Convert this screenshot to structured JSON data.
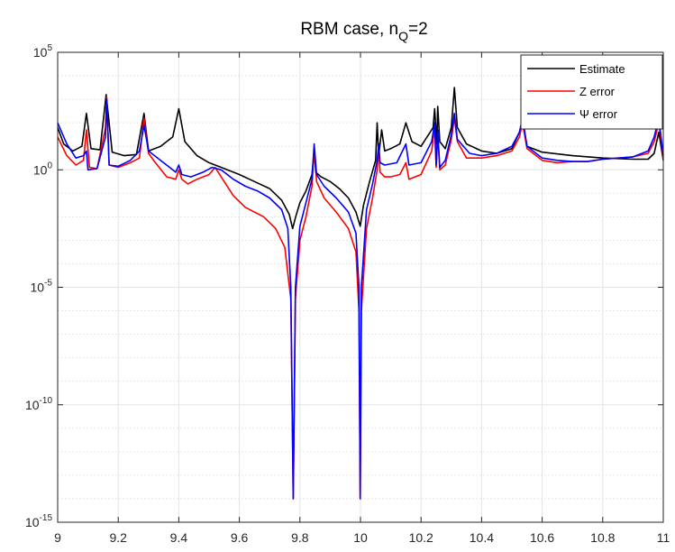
{
  "chart_data": {
    "type": "line",
    "title_main": "RBM case, n",
    "title_sub": "Q",
    "title_tail": "=2",
    "xlabel": "",
    "ylabel": "",
    "x_scale": "linear",
    "y_scale": "log",
    "xlim": [
      9,
      11
    ],
    "ylim_exponents": [
      -15,
      5
    ],
    "grid": true,
    "minor_grid_y": true,
    "legend_position": "top-right",
    "x_ticks": [
      "9",
      "9.2",
      "9.4",
      "9.6",
      "9.8",
      "10",
      "10.2",
      "10.4",
      "10.6",
      "10.8",
      "11"
    ],
    "y_ticks": [
      {
        "base": "10",
        "exp": "5",
        "log": 5
      },
      {
        "base": "10",
        "exp": "0",
        "log": 0
      },
      {
        "base": "10",
        "exp": "-5",
        "log": -5
      },
      {
        "base": "10",
        "exp": "-10",
        "log": -10
      },
      {
        "base": "10",
        "exp": "-15",
        "log": -15
      }
    ],
    "series": [
      {
        "name": "Estimate",
        "color": "#000000",
        "points": [
          [
            9.0,
            1.8
          ],
          [
            9.02,
            1.1
          ],
          [
            9.05,
            0.8
          ],
          [
            9.08,
            1.0
          ],
          [
            9.095,
            2.4
          ],
          [
            9.11,
            0.9
          ],
          [
            9.14,
            0.85
          ],
          [
            9.16,
            3.2
          ],
          [
            9.18,
            0.75
          ],
          [
            9.22,
            0.6
          ],
          [
            9.26,
            0.65
          ],
          [
            9.285,
            2.4
          ],
          [
            9.3,
            0.8
          ],
          [
            9.34,
            1.0
          ],
          [
            9.38,
            1.4
          ],
          [
            9.4,
            2.6
          ],
          [
            9.42,
            1.2
          ],
          [
            9.46,
            0.6
          ],
          [
            9.5,
            0.3
          ],
          [
            9.55,
            0.05
          ],
          [
            9.6,
            -0.2
          ],
          [
            9.65,
            -0.5
          ],
          [
            9.7,
            -0.8
          ],
          [
            9.74,
            -1.3
          ],
          [
            9.765,
            -1.9
          ],
          [
            9.776,
            -2.5
          ],
          [
            9.786,
            -2.0
          ],
          [
            9.8,
            -1.4
          ],
          [
            9.82,
            -0.9
          ],
          [
            9.84,
            -0.2
          ],
          [
            9.847,
            0.8
          ],
          [
            9.852,
            -0.1
          ],
          [
            9.87,
            -0.3
          ],
          [
            9.9,
            -0.5
          ],
          [
            9.93,
            -0.8
          ],
          [
            9.96,
            -1.2
          ],
          [
            9.985,
            -1.8
          ],
          [
            9.999,
            -2.4
          ],
          [
            10.01,
            -1.5
          ],
          [
            10.03,
            -0.5
          ],
          [
            10.05,
            0.4
          ],
          [
            10.055,
            2.0
          ],
          [
            10.06,
            0.6
          ],
          [
            10.07,
            1.7
          ],
          [
            10.08,
            0.8
          ],
          [
            10.1,
            0.9
          ],
          [
            10.13,
            1.1
          ],
          [
            10.15,
            2.0
          ],
          [
            10.17,
            1.2
          ],
          [
            10.2,
            1.0
          ],
          [
            10.24,
            1.8
          ],
          [
            10.245,
            2.6
          ],
          [
            10.252,
            1.1
          ],
          [
            10.255,
            2.7
          ],
          [
            10.262,
            1.2
          ],
          [
            10.28,
            0.9
          ],
          [
            10.3,
            1.8
          ],
          [
            10.31,
            3.5
          ],
          [
            10.32,
            1.8
          ],
          [
            10.35,
            1.1
          ],
          [
            10.4,
            0.8
          ],
          [
            10.45,
            0.7
          ],
          [
            10.5,
            0.9
          ],
          [
            10.525,
            1.6
          ],
          [
            10.535,
            2.1
          ],
          [
            10.55,
            1.0
          ],
          [
            10.6,
            0.75
          ],
          [
            10.7,
            0.6
          ],
          [
            10.8,
            0.5
          ],
          [
            10.9,
            0.45
          ],
          [
            10.95,
            0.45
          ],
          [
            10.97,
            0.7
          ],
          [
            10.985,
            1.6
          ],
          [
            11.0,
            0.4
          ]
        ]
      },
      {
        "name": "Z error",
        "color": "#ff0000",
        "points": [
          [
            9.0,
            1.4
          ],
          [
            9.03,
            0.6
          ],
          [
            9.06,
            0.2
          ],
          [
            9.085,
            0.4
          ],
          [
            9.095,
            1.7
          ],
          [
            9.105,
            0.1
          ],
          [
            9.13,
            0.05
          ],
          [
            9.158,
            1.8
          ],
          [
            9.162,
            3.1
          ],
          [
            9.17,
            0.2
          ],
          [
            9.2,
            0.1
          ],
          [
            9.24,
            0.3
          ],
          [
            9.27,
            0.5
          ],
          [
            9.285,
            2.2
          ],
          [
            9.3,
            0.7
          ],
          [
            9.32,
            0.35
          ],
          [
            9.36,
            -0.3
          ],
          [
            9.39,
            -0.4
          ],
          [
            9.4,
            0.0
          ],
          [
            9.41,
            -0.4
          ],
          [
            9.43,
            -0.6
          ],
          [
            9.46,
            -0.4
          ],
          [
            9.5,
            -0.2
          ],
          [
            9.52,
            0.1
          ],
          [
            9.54,
            -0.3
          ],
          [
            9.58,
            -1.1
          ],
          [
            9.62,
            -1.6
          ],
          [
            9.68,
            -2.0
          ],
          [
            9.72,
            -2.5
          ],
          [
            9.75,
            -3.3
          ],
          [
            9.77,
            -5.5
          ],
          [
            9.778,
            -14.0
          ],
          [
            9.785,
            -5.5
          ],
          [
            9.8,
            -3.0
          ],
          [
            9.82,
            -2.0
          ],
          [
            9.84,
            -0.7
          ],
          [
            9.847,
            0.9
          ],
          [
            9.855,
            -0.5
          ],
          [
            9.88,
            -1.2
          ],
          [
            9.92,
            -1.8
          ],
          [
            9.96,
            -2.5
          ],
          [
            9.985,
            -3.5
          ],
          [
            9.995,
            -6.0
          ],
          [
            9.999,
            -14.0
          ],
          [
            10.003,
            -6.0
          ],
          [
            10.02,
            -2.5
          ],
          [
            10.04,
            -1.2
          ],
          [
            10.055,
            0.0
          ],
          [
            10.06,
            0.8
          ],
          [
            10.065,
            -0.1
          ],
          [
            10.08,
            -0.3
          ],
          [
            10.1,
            -0.3
          ],
          [
            10.13,
            -0.2
          ],
          [
            10.15,
            0.3
          ],
          [
            10.16,
            -0.4
          ],
          [
            10.2,
            -0.2
          ],
          [
            10.235,
            0.8
          ],
          [
            10.245,
            1.8
          ],
          [
            10.25,
            0.1
          ],
          [
            10.255,
            1.5
          ],
          [
            10.262,
            0.0
          ],
          [
            10.28,
            0.2
          ],
          [
            10.3,
            1.3
          ],
          [
            10.31,
            2.2
          ],
          [
            10.32,
            1.2
          ],
          [
            10.35,
            0.5
          ],
          [
            10.4,
            0.5
          ],
          [
            10.45,
            0.6
          ],
          [
            10.5,
            0.8
          ],
          [
            10.525,
            1.4
          ],
          [
            10.535,
            2.0
          ],
          [
            10.55,
            0.9
          ],
          [
            10.6,
            0.4
          ],
          [
            10.65,
            0.3
          ],
          [
            10.7,
            0.35
          ],
          [
            10.75,
            0.35
          ],
          [
            10.8,
            0.45
          ],
          [
            10.9,
            0.55
          ],
          [
            10.95,
            0.7
          ],
          [
            10.97,
            1.2
          ],
          [
            10.985,
            2.0
          ],
          [
            11.0,
            0.5
          ]
        ]
      },
      {
        "name": "Ψ error",
        "color": "#0000ff",
        "points": [
          [
            9.0,
            2.0
          ],
          [
            9.03,
            1.1
          ],
          [
            9.06,
            0.5
          ],
          [
            9.085,
            0.6
          ],
          [
            9.095,
            0.8
          ],
          [
            9.1,
            0.0
          ],
          [
            9.13,
            0.05
          ],
          [
            9.158,
            1.4
          ],
          [
            9.162,
            3.0
          ],
          [
            9.17,
            0.2
          ],
          [
            9.2,
            0.15
          ],
          [
            9.24,
            0.4
          ],
          [
            9.27,
            0.8
          ],
          [
            9.285,
            1.9
          ],
          [
            9.3,
            0.8
          ],
          [
            9.33,
            0.5
          ],
          [
            9.37,
            0.1
          ],
          [
            9.39,
            -0.1
          ],
          [
            9.4,
            0.2
          ],
          [
            9.41,
            -0.2
          ],
          [
            9.44,
            -0.3
          ],
          [
            9.48,
            -0.1
          ],
          [
            9.51,
            0.1
          ],
          [
            9.54,
            0.0
          ],
          [
            9.58,
            -0.4
          ],
          [
            9.62,
            -0.7
          ],
          [
            9.66,
            -0.9
          ],
          [
            9.7,
            -1.2
          ],
          [
            9.74,
            -1.7
          ],
          [
            9.76,
            -2.5
          ],
          [
            9.77,
            -5.0
          ],
          [
            9.778,
            -14.0
          ],
          [
            9.785,
            -5.0
          ],
          [
            9.8,
            -2.4
          ],
          [
            9.82,
            -1.4
          ],
          [
            9.84,
            -0.4
          ],
          [
            9.847,
            1.1
          ],
          [
            9.855,
            -0.2
          ],
          [
            9.88,
            -0.7
          ],
          [
            9.92,
            -1.2
          ],
          [
            9.96,
            -1.8
          ],
          [
            9.985,
            -2.7
          ],
          [
            9.995,
            -5.0
          ],
          [
            9.999,
            -14.0
          ],
          [
            10.003,
            -5.0
          ],
          [
            10.02,
            -1.7
          ],
          [
            10.04,
            -0.6
          ],
          [
            10.055,
            0.4
          ],
          [
            10.06,
            1.1
          ],
          [
            10.065,
            0.3
          ],
          [
            10.08,
            0.2
          ],
          [
            10.12,
            0.3
          ],
          [
            10.15,
            1.1
          ],
          [
            10.16,
            0.2
          ],
          [
            10.2,
            0.3
          ],
          [
            10.235,
            1.2
          ],
          [
            10.245,
            2.0
          ],
          [
            10.25,
            0.2
          ],
          [
            10.255,
            1.7
          ],
          [
            10.262,
            0.1
          ],
          [
            10.28,
            0.4
          ],
          [
            10.3,
            1.5
          ],
          [
            10.31,
            2.4
          ],
          [
            10.32,
            1.3
          ],
          [
            10.36,
            0.7
          ],
          [
            10.4,
            0.6
          ],
          [
            10.45,
            0.7
          ],
          [
            10.5,
            1.0
          ],
          [
            10.525,
            1.6
          ],
          [
            10.535,
            2.2
          ],
          [
            10.55,
            1.0
          ],
          [
            10.6,
            0.5
          ],
          [
            10.65,
            0.4
          ],
          [
            10.7,
            0.35
          ],
          [
            10.75,
            0.35
          ],
          [
            10.8,
            0.45
          ],
          [
            10.9,
            0.55
          ],
          [
            10.95,
            0.8
          ],
          [
            10.97,
            1.4
          ],
          [
            10.985,
            2.2
          ],
          [
            11.0,
            0.6
          ]
        ]
      }
    ]
  }
}
